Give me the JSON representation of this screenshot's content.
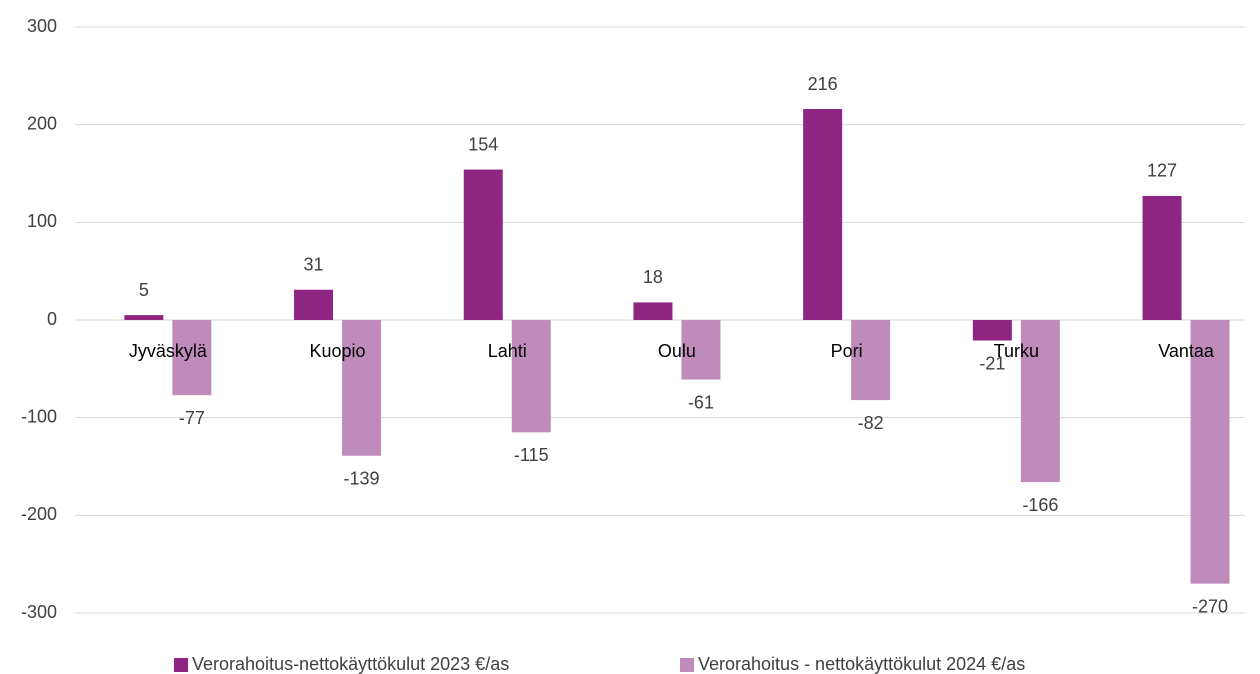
{
  "chart_data": {
    "type": "bar",
    "categories": [
      "Jyväskylä",
      "Kuopio",
      "Lahti",
      "Oulu",
      "Pori",
      "Turku",
      "Vantaa"
    ],
    "series": [
      {
        "name": "Verorahoitus-nettokäyttökulut 2023 €/as",
        "color": "#8e2583",
        "values": [
          5,
          31,
          154,
          18,
          216,
          -21,
          127
        ]
      },
      {
        "name": "Verorahoitus - nettokäyttökulut 2024 €/as",
        "color": "#bf8bba",
        "values": [
          -77,
          -139,
          -115,
          -61,
          -82,
          -166,
          -270
        ]
      }
    ],
    "ylim": [
      -300,
      300
    ],
    "yticks": [
      -300,
      -200,
      -100,
      0,
      100,
      200,
      300
    ],
    "grid": true,
    "legend": "bottom"
  }
}
